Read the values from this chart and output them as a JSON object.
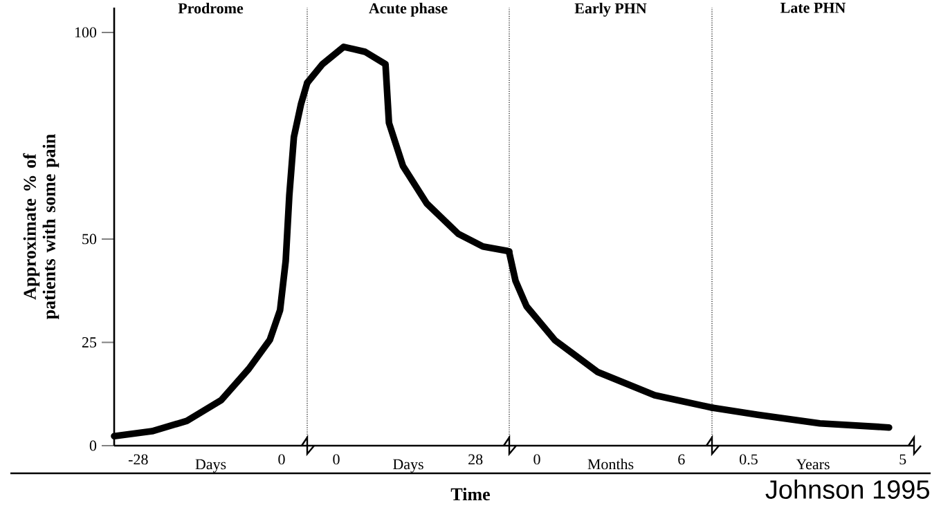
{
  "chart_data": [
    {
      "type": "line",
      "title": "Prodrome",
      "xlabel": "Days",
      "ylabel": "Approximate % of patients with some pain",
      "xlim": [
        -32.7,
        5.0
      ],
      "xticks": [
        -28,
        0
      ],
      "ylim": [
        0,
        106
      ],
      "yticks": [
        0,
        25,
        50,
        100
      ],
      "color": "#000000",
      "line_style": "solid",
      "annotations": [
        "Time"
      ],
      "x": [
        -32.7,
        -25.3,
        -18.5,
        -11.8,
        -6.4,
        -2.3,
        -0.3,
        0.8,
        1.5,
        2.4,
        3.8,
        5.0
      ],
      "values": [
        2.3,
        3.5,
        6,
        11,
        18.6,
        25.6,
        32.8,
        44.7,
        60.5,
        74.7,
        82.7,
        87.8
      ]
    },
    {
      "type": "line",
      "title": "Acute phase",
      "xlabel": "Days",
      "xlim": [
        -5.85,
        34.8
      ],
      "xticks": [
        0,
        28
      ],
      "ylim": [
        0,
        106
      ],
      "tick_labels": "x",
      "color": "#000000",
      "line_style": "solid",
      "x": [
        -5.85,
        -2.8,
        1.5,
        5.8,
        9.9,
        10.6,
        13.4,
        18.2,
        24.5,
        29.5,
        34.5,
        34.8
      ],
      "values": [
        87.8,
        92.3,
        96.5,
        95.3,
        92.3,
        78.1,
        67.7,
        58.6,
        51.3,
        48.2,
        47.1,
        47.0
      ]
    },
    {
      "type": "line",
      "title": "Early PHN",
      "xlabel": "Months",
      "xlim": [
        -1.15,
        7.27
      ],
      "xticks": [
        0,
        6
      ],
      "ylim": [
        0,
        106
      ],
      "tick_labels": "x",
      "color": "#000000",
      "line_style": "solid",
      "x": [
        -1.15,
        -0.89,
        -0.43,
        0.75,
        2.53,
        4.89,
        7.27
      ],
      "values": [
        46.7,
        39.9,
        33.7,
        25.5,
        17.8,
        12.2,
        9.2
      ]
    },
    {
      "type": "line",
      "title": "Late PHN",
      "xlabel": "Years",
      "xlim": [
        -0.57,
        5.33
      ],
      "xticks": [
        0.5,
        5
      ],
      "ylim": [
        0,
        106
      ],
      "tick_labels": "x",
      "color": "#000000",
      "line_style": "solid",
      "annotations": [
        "Johnson 1995"
      ],
      "x": [
        -0.57,
        0.76,
        2.58,
        4.6
      ],
      "values": [
        9.2,
        7.5,
        5.4,
        4.4
      ]
    }
  ]
}
